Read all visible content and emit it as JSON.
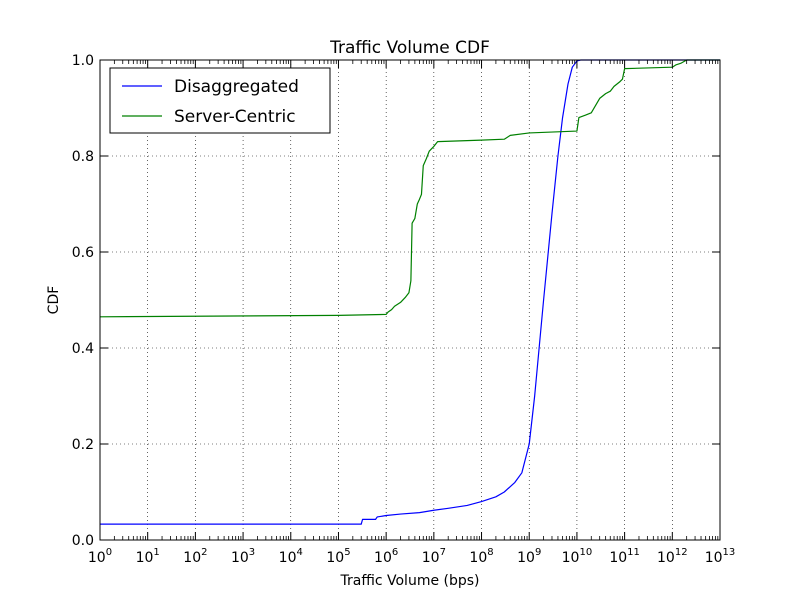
{
  "chart_data": {
    "type": "line",
    "title": "Traffic Volume CDF",
    "xlabel": "Traffic Volume (bps)",
    "ylabel": "CDF",
    "x_scale": "log",
    "xlim": [
      1,
      10000000000000
    ],
    "ylim": [
      0.0,
      1.0
    ],
    "grid": true,
    "legend_position": "top-left",
    "x_ticks": [
      {
        "base": "10",
        "exp": "0",
        "value": 1
      },
      {
        "base": "10",
        "exp": "1",
        "value": 10
      },
      {
        "base": "10",
        "exp": "2",
        "value": 100
      },
      {
        "base": "10",
        "exp": "3",
        "value": 1000
      },
      {
        "base": "10",
        "exp": "4",
        "value": 10000
      },
      {
        "base": "10",
        "exp": "5",
        "value": 100000
      },
      {
        "base": "10",
        "exp": "6",
        "value": 1000000
      },
      {
        "base": "10",
        "exp": "7",
        "value": 10000000
      },
      {
        "base": "10",
        "exp": "8",
        "value": 100000000
      },
      {
        "base": "10",
        "exp": "9",
        "value": 1000000000
      },
      {
        "base": "10",
        "exp": "10",
        "value": 10000000000
      },
      {
        "base": "10",
        "exp": "11",
        "value": 100000000000
      },
      {
        "base": "10",
        "exp": "12",
        "value": 1000000000000
      },
      {
        "base": "10",
        "exp": "13",
        "value": 10000000000000
      }
    ],
    "y_ticks": [
      {
        "label": "0.0",
        "value": 0.0
      },
      {
        "label": "0.2",
        "value": 0.2
      },
      {
        "label": "0.4",
        "value": 0.4
      },
      {
        "label": "0.6",
        "value": 0.6
      },
      {
        "label": "0.8",
        "value": 0.8
      },
      {
        "label": "1.0",
        "value": 1.0
      }
    ],
    "series": [
      {
        "name": "Disaggregated",
        "color": "#0000ff",
        "x": [
          1,
          300000,
          320000,
          600000,
          650000,
          1000000,
          2000000,
          5000000,
          10000000,
          20000000,
          50000000,
          100000000,
          200000000,
          300000000,
          500000000,
          700000000,
          1000000000,
          1300000000,
          2000000000,
          3000000000,
          4000000000,
          5000000000,
          6500000000,
          8000000000,
          10000000000,
          12000000000,
          10000000000000
        ],
        "y": [
          0.033,
          0.033,
          0.043,
          0.043,
          0.048,
          0.051,
          0.054,
          0.057,
          0.062,
          0.066,
          0.072,
          0.08,
          0.09,
          0.1,
          0.12,
          0.14,
          0.2,
          0.3,
          0.5,
          0.68,
          0.8,
          0.88,
          0.95,
          0.985,
          0.998,
          1.0,
          1.0
        ]
      },
      {
        "name": "Server-Centric",
        "color": "#008000",
        "x": [
          1,
          100000,
          1000000,
          1100000,
          1300000,
          1500000,
          2000000,
          2500000,
          3000000,
          3300000,
          3400000,
          3500000,
          4000000,
          4500000,
          5000000,
          5500000,
          6000000,
          7000000,
          8000000,
          10000000,
          12000000,
          100000000,
          300000000,
          400000000,
          1000000000,
          10000000000,
          11000000000,
          15000000000,
          20000000000,
          30000000000,
          40000000000,
          50000000000,
          60000000000,
          80000000000,
          90000000000,
          100000000000,
          1000000000000,
          1200000000000,
          1500000000000,
          2000000000000,
          10000000000000
        ],
        "y": [
          0.465,
          0.468,
          0.47,
          0.475,
          0.48,
          0.487,
          0.495,
          0.505,
          0.515,
          0.54,
          0.6,
          0.66,
          0.67,
          0.7,
          0.71,
          0.72,
          0.78,
          0.795,
          0.81,
          0.82,
          0.83,
          0.833,
          0.835,
          0.843,
          0.848,
          0.852,
          0.88,
          0.885,
          0.89,
          0.92,
          0.93,
          0.935,
          0.945,
          0.955,
          0.96,
          0.982,
          0.985,
          0.99,
          0.993,
          1.0,
          1.0
        ]
      }
    ]
  }
}
